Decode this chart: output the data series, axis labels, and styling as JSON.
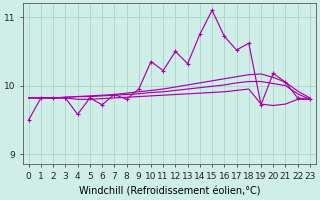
{
  "title": "",
  "xlabel": "Windchill (Refroidissement éolien,°C)",
  "ylabel": "",
  "bg_color": "#d0eee8",
  "grid_color": "#b0d8cc",
  "line_color": "#aa00aa",
  "xlim": [
    -0.5,
    23.5
  ],
  "ylim": [
    8.85,
    11.2
  ],
  "yticks": [
    9,
    10,
    11
  ],
  "xticks": [
    0,
    1,
    2,
    3,
    4,
    5,
    6,
    7,
    8,
    9,
    10,
    11,
    12,
    13,
    14,
    15,
    16,
    17,
    18,
    19,
    20,
    21,
    22,
    23
  ],
  "jagged_y": [
    9.5,
    9.82,
    9.82,
    9.82,
    9.58,
    9.82,
    9.72,
    9.87,
    9.8,
    9.95,
    10.35,
    10.22,
    10.5,
    10.32,
    10.75,
    11.1,
    10.72,
    10.52,
    10.62,
    9.72,
    10.18,
    10.05,
    9.82,
    9.8
  ],
  "line1_x": [
    0,
    1,
    2,
    3,
    4,
    5,
    6,
    7,
    8,
    9,
    10,
    11,
    12,
    13,
    14,
    15,
    16,
    17,
    18,
    19,
    20,
    21,
    22,
    23
  ],
  "line1_y": [
    9.82,
    9.82,
    9.82,
    9.83,
    9.84,
    9.85,
    9.86,
    9.87,
    9.89,
    9.91,
    9.93,
    9.95,
    9.98,
    10.01,
    10.04,
    10.07,
    10.1,
    10.13,
    10.16,
    10.17,
    10.12,
    10.05,
    9.92,
    9.82
  ],
  "line2_x": [
    0,
    1,
    2,
    3,
    4,
    5,
    6,
    7,
    8,
    9,
    10,
    11,
    12,
    13,
    14,
    15,
    16,
    17,
    18,
    19,
    20,
    21,
    22,
    23
  ],
  "line2_y": [
    9.82,
    9.82,
    9.82,
    9.82,
    9.8,
    9.8,
    9.81,
    9.82,
    9.83,
    9.84,
    9.85,
    9.86,
    9.87,
    9.88,
    9.89,
    9.9,
    9.91,
    9.93,
    9.95,
    9.73,
    9.71,
    9.73,
    9.8,
    9.8
  ],
  "line3_x": [
    0,
    1,
    2,
    3,
    4,
    5,
    6,
    7,
    8,
    9,
    10,
    11,
    12,
    13,
    14,
    15,
    16,
    17,
    18,
    19,
    20,
    21,
    22,
    23
  ],
  "line3_y": [
    9.82,
    9.82,
    9.82,
    9.83,
    9.84,
    9.84,
    9.85,
    9.86,
    9.87,
    9.88,
    9.9,
    9.91,
    9.93,
    9.95,
    9.97,
    9.99,
    10.01,
    10.04,
    10.06,
    10.06,
    10.03,
    10.0,
    9.88,
    9.8
  ],
  "xlabel_fontsize": 7,
  "tick_fontsize": 6.5,
  "marker": "+"
}
